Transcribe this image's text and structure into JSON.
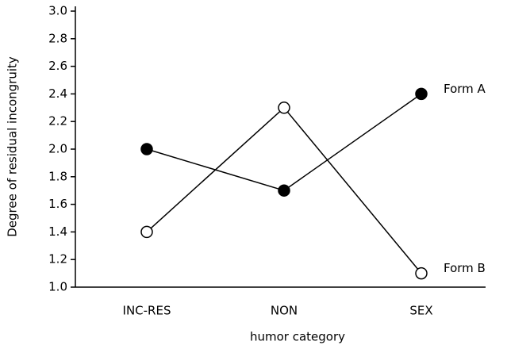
{
  "chart_data": {
    "type": "line",
    "xlabel": "humor category",
    "ylabel": "Degree of residual incongruity",
    "categories": [
      "INC-RES",
      "NON",
      "SEX"
    ],
    "series": [
      {
        "name": "Form A",
        "color": "#000000",
        "marker": "filled",
        "values": [
          2.0,
          1.7,
          2.4
        ]
      },
      {
        "name": "Form B",
        "color": "#000000",
        "marker": "open",
        "values": [
          1.4,
          2.3,
          1.1
        ]
      }
    ],
    "ylim": [
      1.0,
      3.0
    ],
    "yticks": [
      {
        "value": 1.0,
        "label": "1.0"
      },
      1.2,
      1.4,
      1.6,
      1.8,
      {
        "value": 2.0,
        "label": "2.0"
      },
      2.2,
      2.4,
      2.6,
      2.8,
      {
        "value": 3.0,
        "label": "3.0"
      }
    ],
    "grid": false,
    "legend": "end-of-line"
  }
}
